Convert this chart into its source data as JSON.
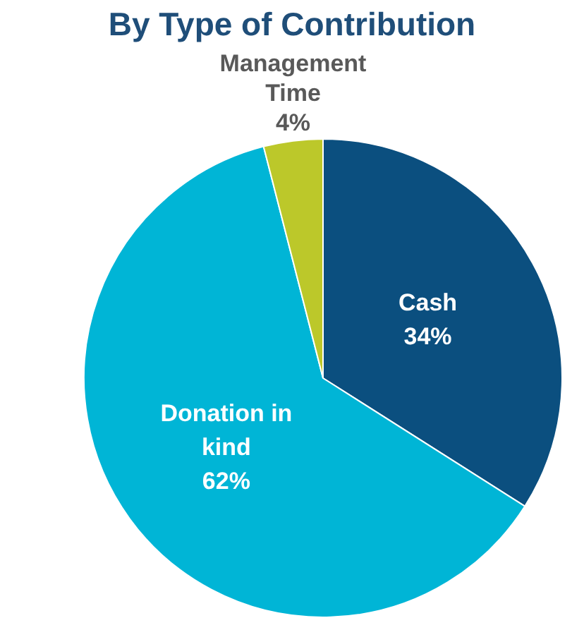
{
  "chart_data": {
    "type": "pie",
    "title": "By Type of Contribution",
    "categories": [
      "Cash",
      "Donation in kind",
      "Management Time"
    ],
    "values": [
      34,
      62,
      4
    ],
    "value_labels": [
      "34%",
      "62%",
      "4%"
    ],
    "colors": [
      "#0b4f7f",
      "#00b5d6",
      "#bcc82a"
    ],
    "legend": false
  }
}
